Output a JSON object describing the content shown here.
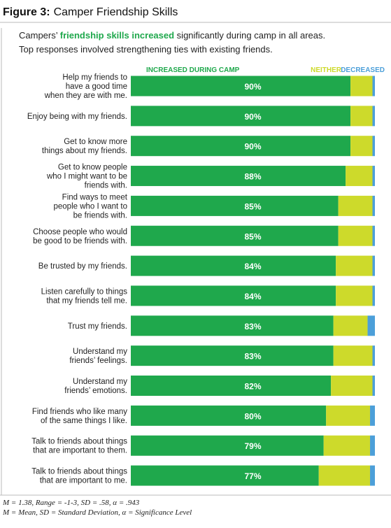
{
  "chart_data": {
    "type": "stacked_bar_horizontal",
    "figure_label": "Figure 3:",
    "title": "Camper Friendship Skills",
    "subtitle": {
      "line1": [
        "Campers’ ",
        "friendship skills increased",
        " significantly during camp in all areas."
      ],
      "line2": "Top responses involved strengthening ties with existing friends."
    },
    "categories": [
      "Help my friends to\nhave a good time\nwhen they are with me.",
      "Enjoy being with my friends.",
      "Get to know more\nthings about my friends.",
      "Get to know people\nwho I might want to be\nfriends with.",
      "Find ways to meet\npeople who I want to\nbe friends with.",
      "Choose people who would\nbe good to be friends with.",
      "Be trusted by my friends.",
      "Listen carefully to things\nthat my friends tell me.",
      "Trust my friends.",
      "Understand my\nfriends’ feelings.",
      "Understand my\nfriends’ emotions.",
      "Find friends who like many\nof the same things I like.",
      "Talk to friends about things\nthat are important to them.",
      "Talk to friends about things\nthat are important to me."
    ],
    "series": [
      {
        "name": "INCREASED DURING CAMP",
        "color": "#1fa84c",
        "values": [
          90,
          90,
          90,
          88,
          85,
          85,
          84,
          84,
          83,
          83,
          82,
          80,
          79,
          77
        ],
        "value_labels": [
          "90%",
          "90%",
          "90%",
          "88%",
          "85%",
          "85%",
          "84%",
          "84%",
          "83%",
          "83%",
          "82%",
          "80%",
          "79%",
          "77%"
        ]
      },
      {
        "name": "NEITHER",
        "color": "#cdda2b",
        "values": [
          9,
          9,
          9,
          11,
          14,
          14,
          15,
          15,
          14,
          16,
          17,
          18,
          19,
          21
        ]
      },
      {
        "name": "DECREASED",
        "color": "#4c9fd9",
        "values": [
          1,
          1,
          1,
          1,
          1,
          1,
          1,
          1,
          3,
          1,
          1,
          2,
          2,
          2
        ]
      }
    ],
    "xlim": [
      0,
      100
    ],
    "footnotes": [
      "M = 1.38, Range = -1-3, SD = .58, α = .943",
      "M = Mean, SD = Standard Deviation, α = Significance Level"
    ]
  }
}
